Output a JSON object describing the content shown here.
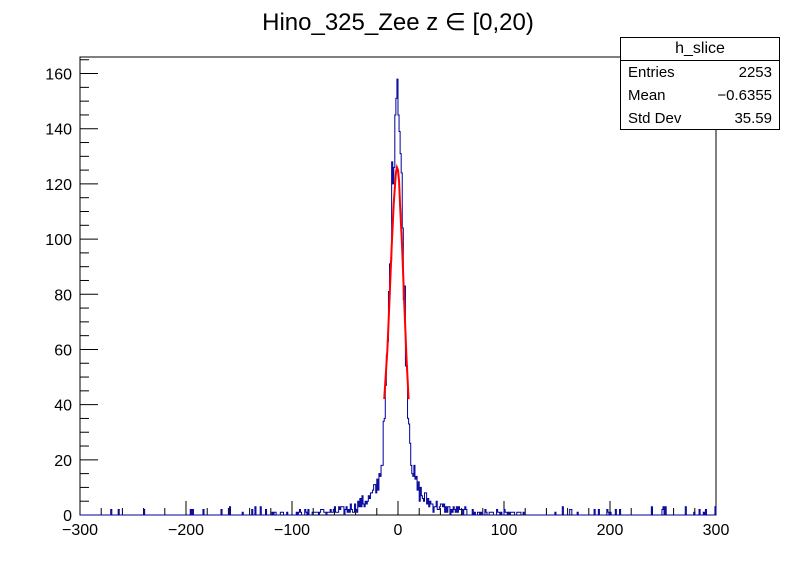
{
  "chart_data": {
    "type": "bar",
    "title": "Hino_325_Zee z  ∈ [0,20)",
    "xlabel": "",
    "ylabel": "",
    "xlim": [
      -300,
      300
    ],
    "ylim": [
      0,
      166
    ],
    "x_ticks": [
      "−300",
      "−200",
      "−100",
      "0",
      "100",
      "200",
      "300"
    ],
    "y_ticks": [
      "0",
      "20",
      "40",
      "60",
      "80",
      "100",
      "120",
      "140",
      "160"
    ],
    "grid": false,
    "series": [
      {
        "style": "histogram",
        "color": "#000099",
        "bins": 600,
        "peak_x": -1,
        "peak_value": 158,
        "tail_min": 0,
        "tail_max": 3
      },
      {
        "style": "fit",
        "color": "#ff0000",
        "x_range": [
          -13,
          10
        ],
        "x": [
          -13,
          -10,
          -8,
          -6,
          -4,
          -2,
          -1,
          0,
          1,
          2,
          4,
          6,
          8,
          10
        ],
        "y": [
          42,
          60,
          78,
          97,
          113,
          124,
          126,
          125,
          121,
          112,
          96,
          76,
          57,
          42
        ]
      }
    ]
  },
  "stats": {
    "title": "h_slice",
    "rows": [
      {
        "label": "Entries",
        "value": "2253"
      },
      {
        "label": "Mean",
        "value": "−0.6355"
      },
      {
        "label": "Std Dev",
        "value": "35.59"
      }
    ]
  },
  "colors": {
    "histogram": "#000099",
    "fit": "#ff0000",
    "frame": "#000000"
  }
}
